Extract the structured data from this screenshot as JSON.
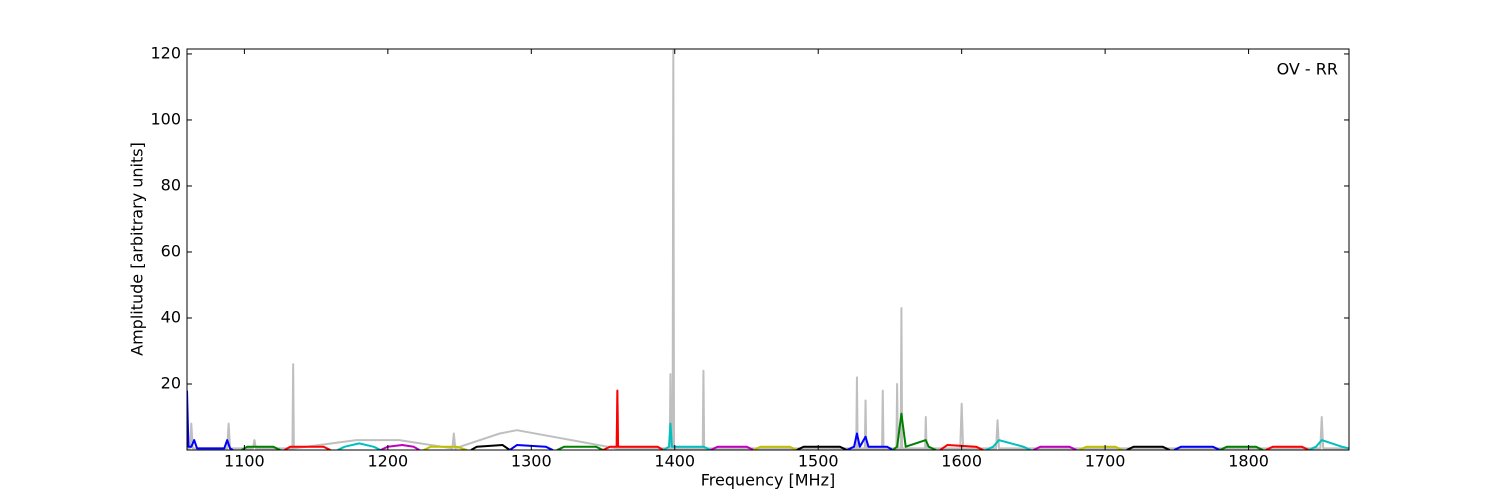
{
  "chart_data": {
    "type": "line",
    "annotation": "OV - RR",
    "xlabel": "Frequency [MHz]",
    "ylabel": "Amplitude [arbitrary units]",
    "xlim": [
      1060,
      1870
    ],
    "ylim": [
      0,
      121.5
    ],
    "xticks": [
      1100,
      1200,
      1300,
      1400,
      1500,
      1600,
      1700,
      1800
    ],
    "yticks": [
      20,
      40,
      60,
      80,
      100,
      120
    ],
    "series": [
      {
        "color": "#bfbfbf",
        "x": [
          1060,
          1062,
          1063,
          1064,
          1088,
          1089,
          1090,
          1106,
          1107,
          1108,
          1133.5,
          1134,
          1134.5,
          1178,
          1208,
          1245,
          1246,
          1247,
          1278,
          1290,
          1359.5,
          1360,
          1360.5,
          1396.5,
          1397,
          1397.5,
          1398.5,
          1399,
          1399.5,
          1419.5,
          1420,
          1420.5,
          1526.5,
          1527,
          1527.5,
          1532.5,
          1533,
          1533.5,
          1544.5,
          1545,
          1545.5,
          1554.5,
          1555,
          1555.5,
          1557.5,
          1558,
          1558.5,
          1574.5,
          1575,
          1575.5,
          1599,
          1600,
          1601,
          1624,
          1625,
          1626,
          1850,
          1851,
          1852,
          1870
        ],
        "values": [
          0.5,
          0.5,
          8,
          0.5,
          0.5,
          8,
          0.5,
          0.5,
          3,
          0.5,
          0.5,
          26,
          0.5,
          3,
          3,
          0.5,
          5,
          0.5,
          5,
          6,
          0.5,
          18,
          0.5,
          0.5,
          23,
          0.5,
          0.5,
          121,
          0.5,
          0.5,
          24,
          0.5,
          0.5,
          22,
          0.5,
          0.5,
          15,
          0.5,
          0.5,
          18,
          0.5,
          0.5,
          20,
          0.5,
          0.5,
          43,
          0.5,
          0.5,
          10,
          0.5,
          0.5,
          14,
          0.5,
          0.5,
          9,
          0.5,
          0.5,
          10,
          0.5,
          0.5
        ]
      },
      {
        "color": "#0000ff",
        "x": [
          1060,
          1061,
          1063,
          1065,
          1067,
          1086,
          1088,
          1090,
          1092
        ],
        "values": [
          18,
          1,
          1,
          3,
          0.5,
          0.5,
          3,
          0.5,
          0
        ]
      },
      {
        "color": "#008000",
        "x": [
          1098,
          1102,
          1120,
          1125
        ],
        "values": [
          0,
          1,
          1,
          0
        ]
      },
      {
        "color": "#ff0000",
        "x": [
          1128,
          1132,
          1155,
          1160
        ],
        "values": [
          0,
          1,
          1,
          0
        ]
      },
      {
        "color": "#00bfbf",
        "x": [
          1165,
          1170,
          1180,
          1190,
          1195
        ],
        "values": [
          0,
          1,
          2,
          1,
          0
        ]
      },
      {
        "color": "#bf00bf",
        "x": [
          1195,
          1200,
          1210,
          1218,
          1222
        ],
        "values": [
          0,
          1,
          1.5,
          1,
          0
        ]
      },
      {
        "color": "#bfbf00",
        "x": [
          1225,
          1230,
          1248,
          1255
        ],
        "values": [
          0,
          1,
          1,
          0
        ]
      },
      {
        "color": "#000000",
        "x": [
          1258,
          1262,
          1280,
          1285
        ],
        "values": [
          0,
          1,
          1.5,
          0
        ]
      },
      {
        "color": "#0000ff",
        "x": [
          1285,
          1290,
          1310,
          1315
        ],
        "values": [
          0,
          1.5,
          1,
          0
        ]
      },
      {
        "color": "#008000",
        "x": [
          1318,
          1323,
          1345,
          1350
        ],
        "values": [
          0,
          1,
          1,
          0
        ]
      },
      {
        "color": "#ff0000",
        "x": [
          1350,
          1355,
          1359.5,
          1360,
          1360.5,
          1388,
          1392
        ],
        "values": [
          0,
          1,
          1,
          18,
          1,
          1,
          0
        ]
      },
      {
        "color": "#00bfbf",
        "x": [
          1392,
          1396,
          1397,
          1398,
          1420,
          1425
        ],
        "values": [
          0,
          1,
          8,
          1,
          1,
          0
        ]
      },
      {
        "color": "#bf00bf",
        "x": [
          1425,
          1430,
          1450,
          1455
        ],
        "values": [
          0,
          1,
          1,
          0
        ]
      },
      {
        "color": "#bfbf00",
        "x": [
          1455,
          1460,
          1480,
          1485
        ],
        "values": [
          0,
          1,
          1,
          0
        ]
      },
      {
        "color": "#000000",
        "x": [
          1485,
          1490,
          1515,
          1520
        ],
        "values": [
          0,
          1,
          1,
          0
        ]
      },
      {
        "color": "#0000ff",
        "x": [
          1520,
          1525,
          1527,
          1529,
          1533,
          1535,
          1548,
          1552
        ],
        "values": [
          0,
          1,
          5,
          1,
          4,
          1,
          1,
          0
        ]
      },
      {
        "color": "#008000",
        "x": [
          1552,
          1555,
          1558,
          1561,
          1575,
          1577,
          1582
        ],
        "values": [
          0,
          1,
          11,
          1,
          3,
          1,
          0
        ]
      },
      {
        "color": "#ff0000",
        "x": [
          1585,
          1590,
          1610,
          1615
        ],
        "values": [
          0,
          1.5,
          1,
          0
        ]
      },
      {
        "color": "#00bfbf",
        "x": [
          1617,
          1622,
          1626,
          1643,
          1648
        ],
        "values": [
          0,
          1,
          3,
          1,
          0
        ]
      },
      {
        "color": "#bf00bf",
        "x": [
          1650,
          1655,
          1675,
          1680
        ],
        "values": [
          0,
          1,
          1,
          0
        ]
      },
      {
        "color": "#bfbf00",
        "x": [
          1682,
          1687,
          1707,
          1712
        ],
        "values": [
          0,
          1,
          1,
          0
        ]
      },
      {
        "color": "#000000",
        "x": [
          1715,
          1720,
          1740,
          1745
        ],
        "values": [
          0,
          1,
          1,
          0
        ]
      },
      {
        "color": "#0000ff",
        "x": [
          1748,
          1753,
          1775,
          1780
        ],
        "values": [
          0,
          1,
          1,
          0
        ]
      },
      {
        "color": "#008000",
        "x": [
          1780,
          1785,
          1805,
          1810
        ],
        "values": [
          0,
          1,
          1,
          0
        ]
      },
      {
        "color": "#ff0000",
        "x": [
          1812,
          1817,
          1837,
          1842
        ],
        "values": [
          0,
          1,
          1,
          0
        ]
      },
      {
        "color": "#00bfbf",
        "x": [
          1842,
          1847,
          1851,
          1865,
          1870
        ],
        "values": [
          0,
          1,
          3,
          1,
          0.5
        ]
      }
    ]
  }
}
